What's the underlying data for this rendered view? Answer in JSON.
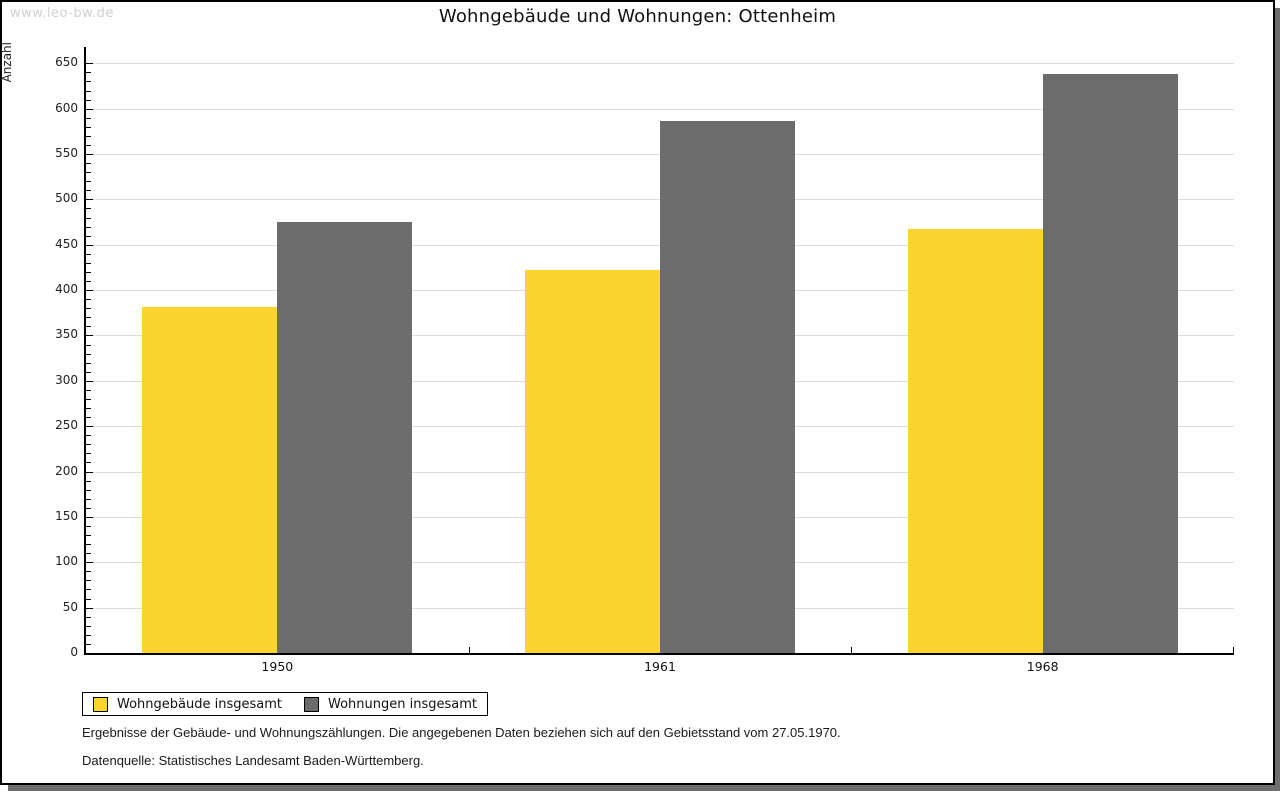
{
  "watermark": "www.leo-bw.de",
  "title": "Wohngebäude und Wohnungen: Ottenheim",
  "chart_data": {
    "type": "bar",
    "title": "Wohngebäude und Wohnungen: Ottenheim",
    "xlabel": "",
    "ylabel": "Anzahl",
    "categories": [
      "1950",
      "1961",
      "1968"
    ],
    "series": [
      {
        "name": "Wohngebäude insgesamt",
        "color": "#fcd42f",
        "values": [
          381,
          422,
          467
        ]
      },
      {
        "name": "Wohnungen insgesamt",
        "color": "#6c6c6c",
        "values": [
          475,
          586,
          638
        ]
      }
    ],
    "ylim": [
      0,
      668
    ],
    "ytick_step": 50,
    "ytick_minor_step": 10,
    "ytick_label_max": 650,
    "grid": true,
    "legend_position": "bottom-left"
  },
  "footer": {
    "line1": "Ergebnisse der Gebäude- und Wohnungszählungen. Die angegebenen Daten beziehen sich auf den Gebietsstand vom 27.05.1970.",
    "line2": "Datenquelle: Statistisches Landesamt Baden-Württemberg."
  },
  "colors": {
    "grid": "#dcdcdc",
    "axis": "#000000",
    "watermark": "#d0d0d0",
    "shadow": "#6e6e6e",
    "background": "#ffffff"
  }
}
